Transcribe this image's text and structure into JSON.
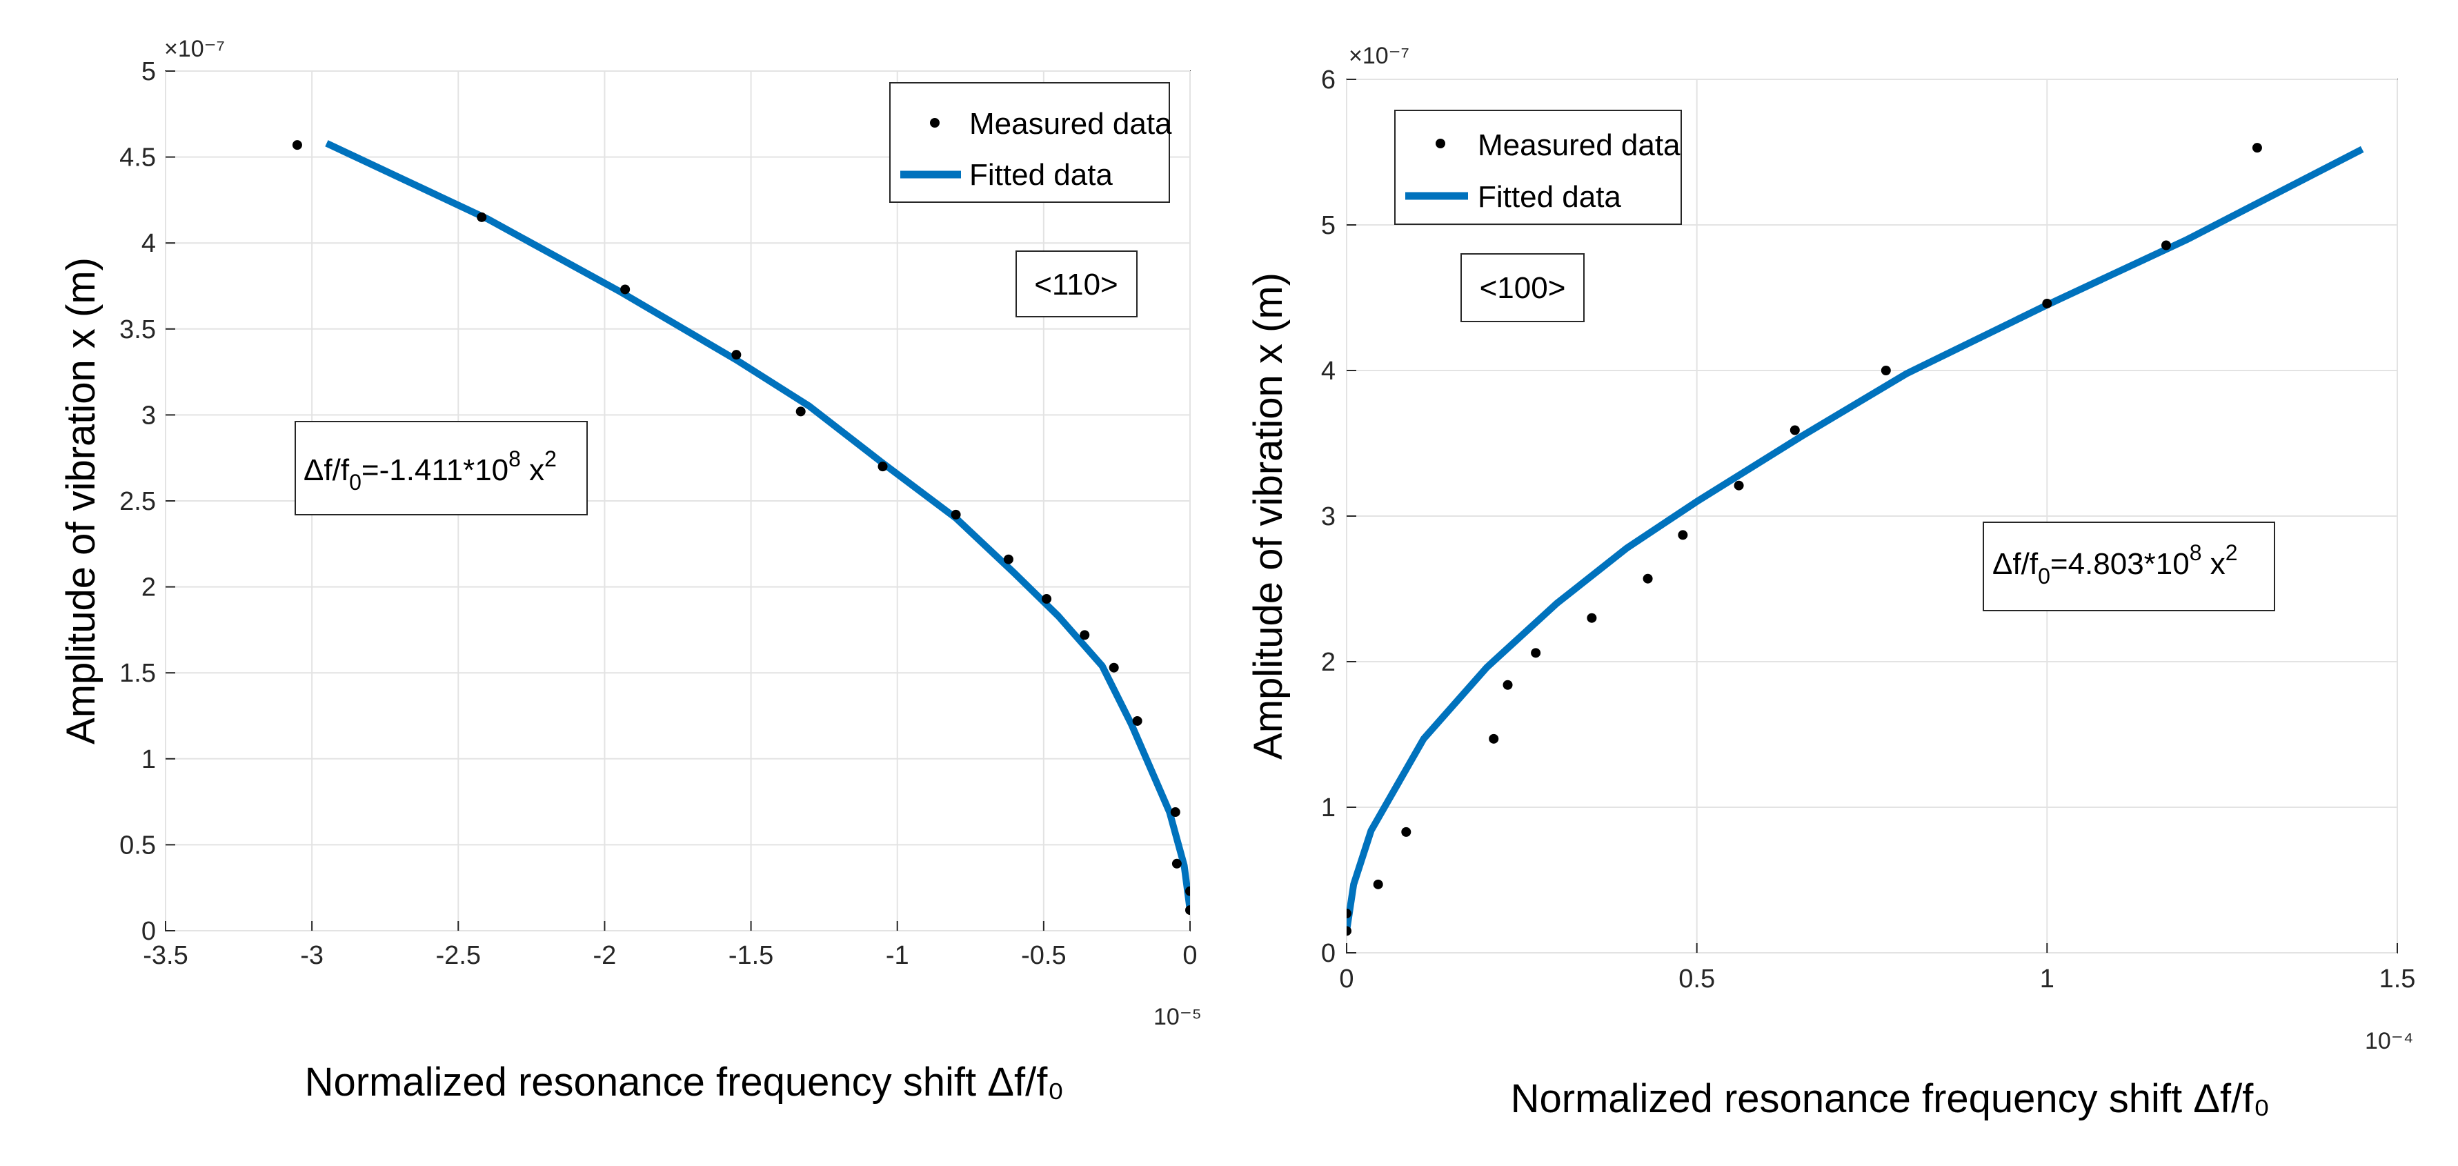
{
  "chart_data": [
    {
      "type": "scatter",
      "panel": "left",
      "xlabel": "Normalized resonance frequency shift  Δf/f₀",
      "ylabel": "Amplitude of vibration  x (m)",
      "x_exponent_label": "10⁻⁵",
      "y_exponent_label": "×10⁻⁷",
      "xlim": [
        -3.5,
        0
      ],
      "ylim": [
        0,
        5
      ],
      "x_scale": 1e-05,
      "y_scale": 1e-07,
      "xticks": [
        -3.5,
        -3,
        -2.5,
        -2,
        -1.5,
        -1,
        -0.5,
        0
      ],
      "xtick_labels": [
        "-3.5",
        "-3",
        "-2.5",
        "-2",
        "-1.5",
        "-1",
        "-0.5",
        "0"
      ],
      "yticks": [
        0,
        0.5,
        1,
        1.5,
        2,
        2.5,
        3,
        3.5,
        4,
        4.5,
        5
      ],
      "ytick_labels": [
        "0",
        "0.5",
        "1",
        "1.5",
        "2",
        "2.5",
        "3",
        "3.5",
        "4",
        "4.5",
        "5"
      ],
      "grid": true,
      "legend_position": "top-right",
      "legend": [
        "Measured data",
        "Fitted data"
      ],
      "orientation_label": "<110>",
      "equation": {
        "lhs": "Δf/f",
        "sub": "0",
        "mid": "=-1.411*10",
        "sup1": "8",
        "var": " x",
        "sup2": "2"
      },
      "series": [
        {
          "name": "Measured data",
          "style": "markers",
          "color": "#000000",
          "x": [
            -3.05,
            -2.42,
            -1.93,
            -1.55,
            -1.33,
            -1.05,
            -0.8,
            -0.62,
            -0.49,
            -0.36,
            -0.26,
            -0.18,
            -0.05,
            -0.045,
            0.0,
            0.0
          ],
          "y": [
            4.57,
            4.15,
            3.73,
            3.35,
            3.02,
            2.7,
            2.42,
            2.16,
            1.93,
            1.72,
            1.53,
            1.22,
            0.69,
            0.39,
            0.23,
            0.12
          ]
        },
        {
          "name": "Fitted data",
          "style": "line",
          "color": "#0072BD",
          "x": [
            -2.95,
            -2.4,
            -1.95,
            -1.55,
            -1.3,
            -1.05,
            -0.8,
            -0.6,
            -0.45,
            -0.3,
            -0.2,
            -0.07,
            -0.02,
            0.0
          ],
          "y": [
            4.58,
            4.14,
            3.72,
            3.32,
            3.05,
            2.72,
            2.4,
            2.08,
            1.83,
            1.54,
            1.2,
            0.69,
            0.38,
            0.12
          ]
        }
      ]
    },
    {
      "type": "scatter",
      "panel": "right",
      "xlabel": "Normalized resonance frequency shift  Δf/f₀",
      "ylabel": "Amplitude of vibration  x (m)",
      "x_exponent_label": "10⁻⁴",
      "y_exponent_label": "×10⁻⁷",
      "xlim": [
        0,
        1.5
      ],
      "ylim": [
        0,
        6
      ],
      "x_scale": 0.0001,
      "y_scale": 1e-07,
      "xticks": [
        0,
        0.5,
        1,
        1.5
      ],
      "xtick_labels": [
        "0",
        "0.5",
        "1",
        "1.5"
      ],
      "yticks": [
        0,
        1,
        2,
        3,
        4,
        5,
        6
      ],
      "ytick_labels": [
        "0",
        "1",
        "2",
        "3",
        "4",
        "5",
        "6"
      ],
      "grid": true,
      "legend_position": "top-left",
      "legend": [
        "Measured data",
        "Fitted data"
      ],
      "orientation_label": "<100>",
      "equation": {
        "lhs": "Δf/f",
        "sub": "0",
        "mid": "=4.803*10",
        "sup1": "8",
        "var": " x",
        "sup2": "2"
      },
      "series": [
        {
          "name": "Measured data",
          "style": "markers",
          "color": "#000000",
          "x": [
            0.0,
            0.0,
            0.045,
            0.085,
            0.21,
            0.23,
            0.27,
            0.35,
            0.43,
            0.48,
            0.56,
            0.64,
            0.77,
            1.0,
            1.17,
            1.3
          ],
          "y": [
            0.15,
            0.27,
            0.47,
            0.83,
            1.47,
            1.84,
            2.06,
            2.3,
            2.57,
            2.87,
            3.21,
            3.59,
            4.0,
            4.46,
            4.86,
            5.53
          ]
        },
        {
          "name": "Fitted data",
          "style": "line",
          "color": "#0072BD",
          "x": [
            0.0,
            0.01,
            0.035,
            0.11,
            0.2,
            0.3,
            0.4,
            0.5,
            0.65,
            0.8,
            1.0,
            1.2,
            1.45
          ],
          "y": [
            0.15,
            0.47,
            0.84,
            1.47,
            1.96,
            2.4,
            2.78,
            3.1,
            3.55,
            3.98,
            4.45,
            4.9,
            5.52
          ]
        }
      ]
    }
  ]
}
